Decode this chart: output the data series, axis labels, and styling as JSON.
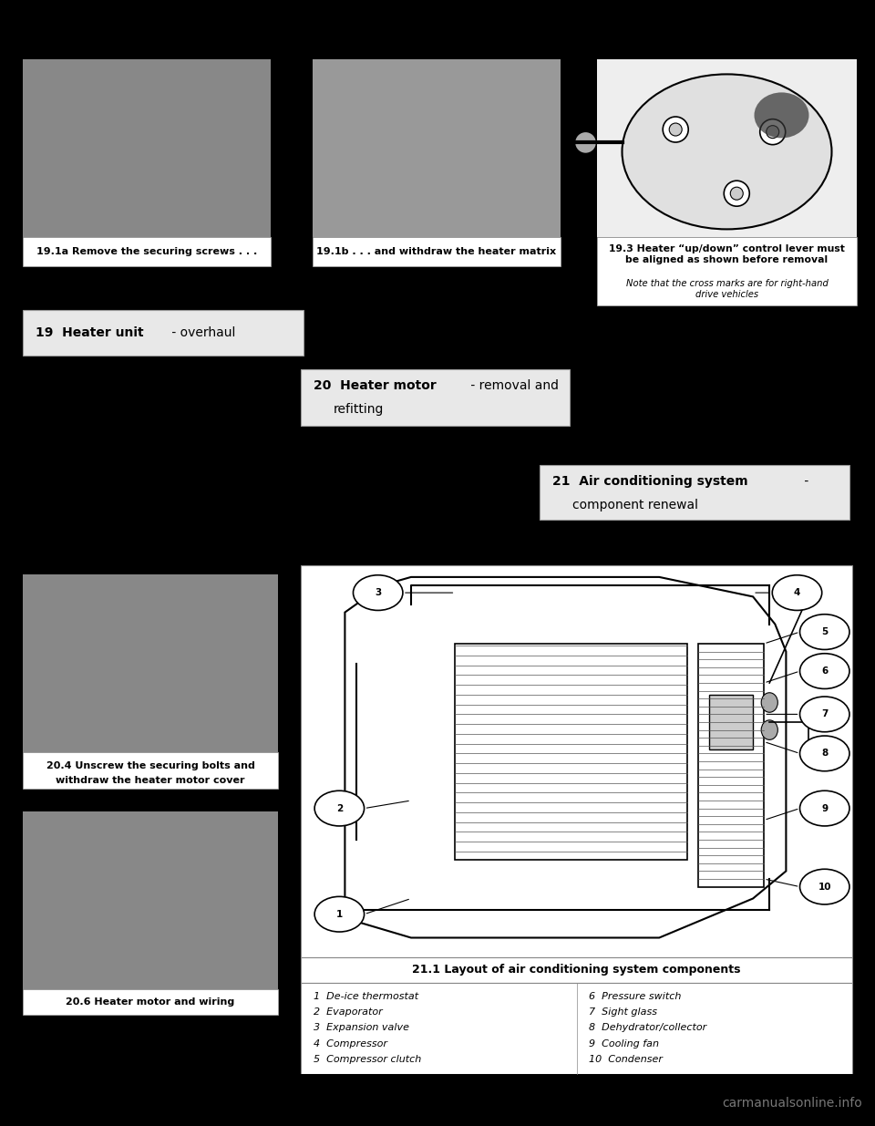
{
  "bg_color": "#000000",
  "content_bg": "#ffffff",
  "watermark": "carmanualsonline.info",
  "watermark_color": "#777777",
  "watermark_fontsize": 10,
  "img1_label": "19.1a Remove the securing screws . . .",
  "img2_label": "19.1b . . . and withdraw the heater matrix",
  "img3_label_bold": "19.3 Heater “up/down” control lever must\nbe aligned as shown before removal",
  "img3_label_italic": "Note that the cross marks are for right-hand\ndrive vehicles",
  "box19_bold": "19  Heater unit",
  "box19_reg": " - overhaul",
  "box20_bold": "20  Heater motor",
  "box20_reg": " - removal and\n   refitting",
  "box21_bold": "21  Air conditioning system",
  "box21_reg": " -\n   component renewal",
  "p1_label_bold": "20.4 Unscrew the securing bolts and\nwithdraw the heater motor cover",
  "p2_label_bold": "20.6 Heater motor and wiring",
  "diag_title": "21.1 Layout of air conditioning system components",
  "component_list_left": [
    "1  De-ice thermostat",
    "2  Evaporator",
    "3  Expansion valve",
    "4  Compressor",
    "5  Compressor clutch"
  ],
  "component_list_right": [
    "6  Pressure switch",
    "7  Sight glass",
    "8  Dehydrator/collector",
    "9  Cooling fan",
    "10  Condenser"
  ]
}
